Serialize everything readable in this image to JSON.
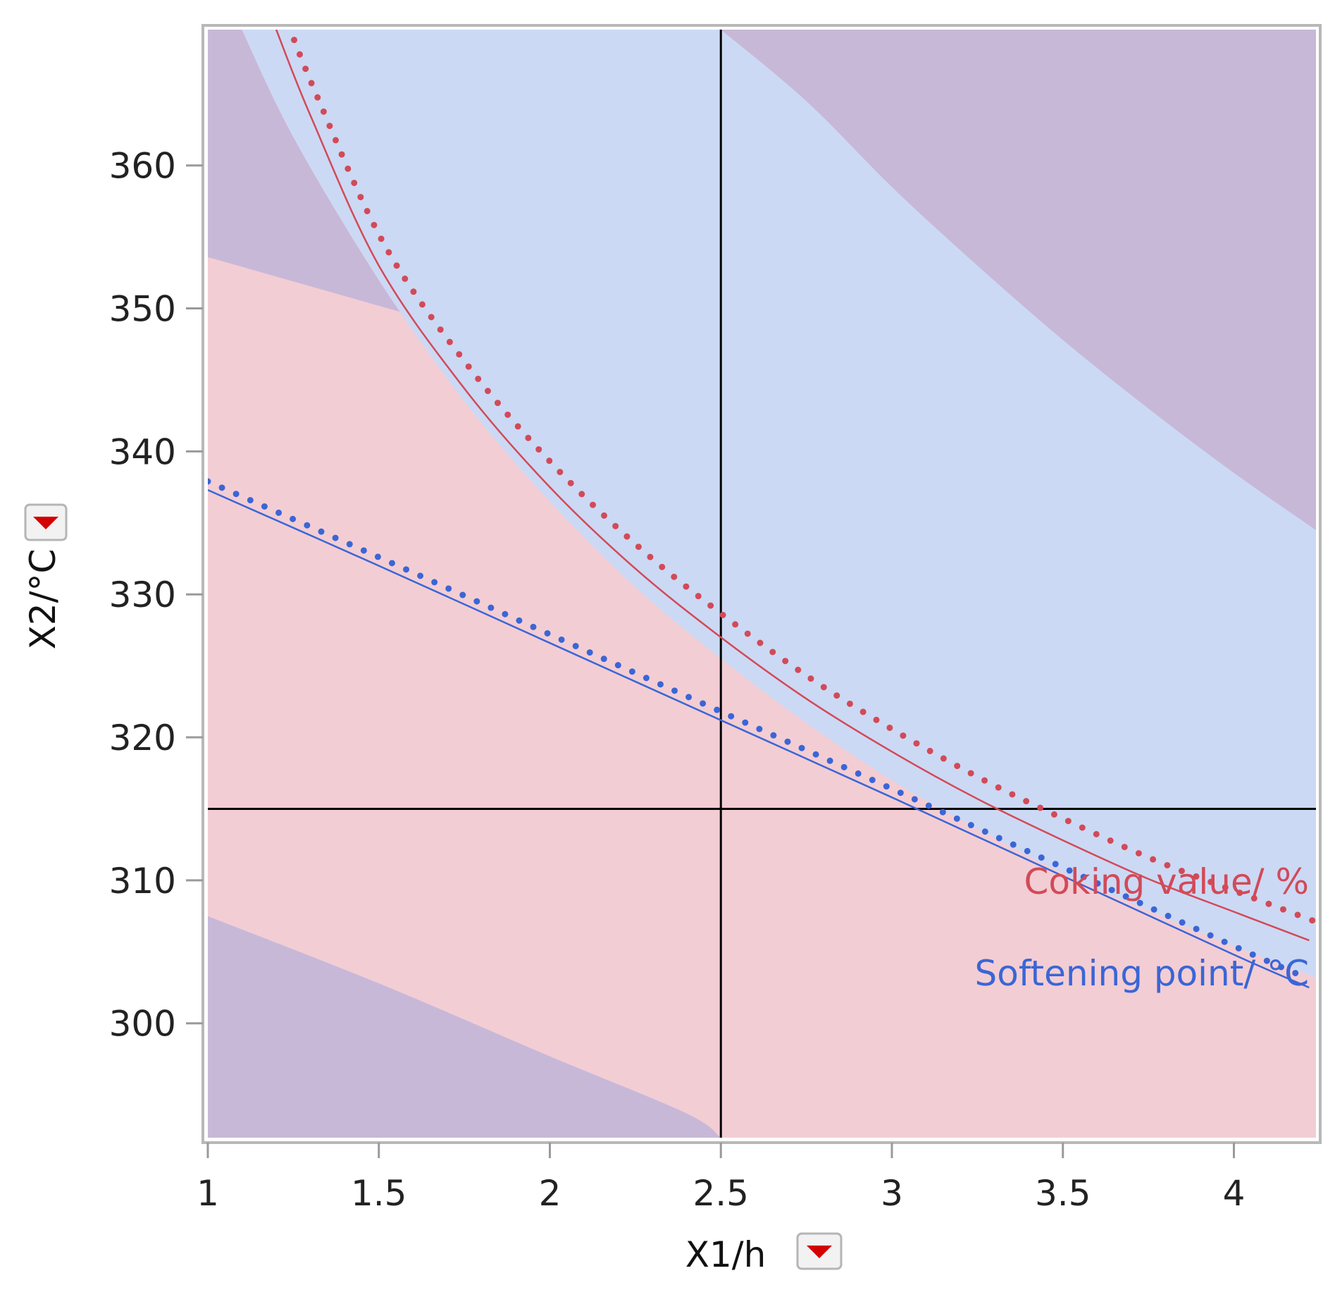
{
  "chart_data": {
    "type": "contour",
    "xlabel": "X1/h",
    "ylabel": "X2/°C",
    "xlim": [
      1,
      4.24
    ],
    "ylim": [
      292,
      369.5
    ],
    "x_ticks": [
      "1",
      "1.5",
      "2",
      "2.5",
      "3",
      "3.5",
      "4"
    ],
    "x_tick_values": [
      1,
      1.5,
      2,
      2.5,
      3,
      3.5,
      4
    ],
    "y_ticks": [
      "300",
      "310",
      "320",
      "330",
      "340",
      "350",
      "360"
    ],
    "y_tick_values": [
      300,
      310,
      320,
      330,
      340,
      350,
      360
    ],
    "crosshair": {
      "x": 2.5,
      "y": 315
    },
    "colors": {
      "coking": "#d24a58",
      "softening": "#3a66d6",
      "red_region": "#f3cdd4",
      "blue_region": "#ccd9f4",
      "purple_region": "#c8b8d8",
      "frame": "#b8b8b8",
      "menu_icon": "#d40000"
    },
    "contours": [
      {
        "name": "Coking value/ %",
        "color": "#d24a58",
        "label": "Coking value/ %",
        "points": [
          [
            1.2,
            369.5
          ],
          [
            1.3,
            363.5
          ],
          [
            1.5,
            353
          ],
          [
            1.75,
            344.4
          ],
          [
            2,
            337.5
          ],
          [
            2.25,
            331.8
          ],
          [
            2.5,
            327
          ],
          [
            2.75,
            322.7
          ],
          [
            3,
            319
          ],
          [
            3.25,
            315.7
          ],
          [
            3.5,
            312.8
          ],
          [
            3.75,
            310.1
          ],
          [
            4,
            307.8
          ],
          [
            4.22,
            305.8
          ]
        ]
      },
      {
        "name": "Softening point/ °C",
        "color": "#3a66d6",
        "label": "Softening point/ °C",
        "points": [
          [
            1,
            337.3
          ],
          [
            1.5,
            332
          ],
          [
            2,
            326.6
          ],
          [
            2.5,
            321.2
          ],
          [
            3,
            315.8
          ],
          [
            3.5,
            310.3
          ],
          [
            4,
            304.8
          ],
          [
            4.22,
            302.5
          ]
        ]
      }
    ],
    "regions": [
      {
        "name": "coking-limit-band",
        "color": "#ccd9f4",
        "lower": [
          [
            1.1,
            369.5
          ],
          [
            1.25,
            362
          ],
          [
            1.5,
            352
          ],
          [
            1.75,
            343.5
          ],
          [
            2,
            336.5
          ],
          [
            2.25,
            330.5
          ],
          [
            2.5,
            325.5
          ],
          [
            2.75,
            321
          ],
          [
            3,
            317
          ],
          [
            3.25,
            313.6
          ],
          [
            3.5,
            310.5
          ],
          [
            3.75,
            307.9
          ],
          [
            4,
            305.4
          ],
          [
            4.24,
            303.2
          ]
        ],
        "upper": [
          [
            2.5,
            369.5
          ],
          [
            2.75,
            364.5
          ],
          [
            3,
            358.5
          ],
          [
            3.25,
            353
          ],
          [
            3.5,
            347.8
          ],
          [
            3.75,
            343
          ],
          [
            4,
            338.5
          ],
          [
            4.24,
            334.5
          ]
        ]
      },
      {
        "name": "softening-limit-band",
        "color": "#f3cdd4",
        "lower": [
          [
            1,
            307.5
          ],
          [
            1.5,
            302.8
          ],
          [
            2,
            297.7
          ],
          [
            2.4,
            293.7
          ],
          [
            2.5,
            292
          ]
        ],
        "upper": [
          [
            1,
            356
          ],
          [
            1.5,
            350.8
          ],
          [
            2,
            345.5
          ],
          [
            2.5,
            340
          ],
          [
            3,
            334.5
          ],
          [
            3.5,
            329
          ],
          [
            4,
            324
          ],
          [
            4.24,
            321.5
          ]
        ]
      }
    ]
  },
  "x_menu": {
    "icon": "dropdown-triangle"
  },
  "y_menu": {
    "icon": "dropdown-triangle"
  }
}
